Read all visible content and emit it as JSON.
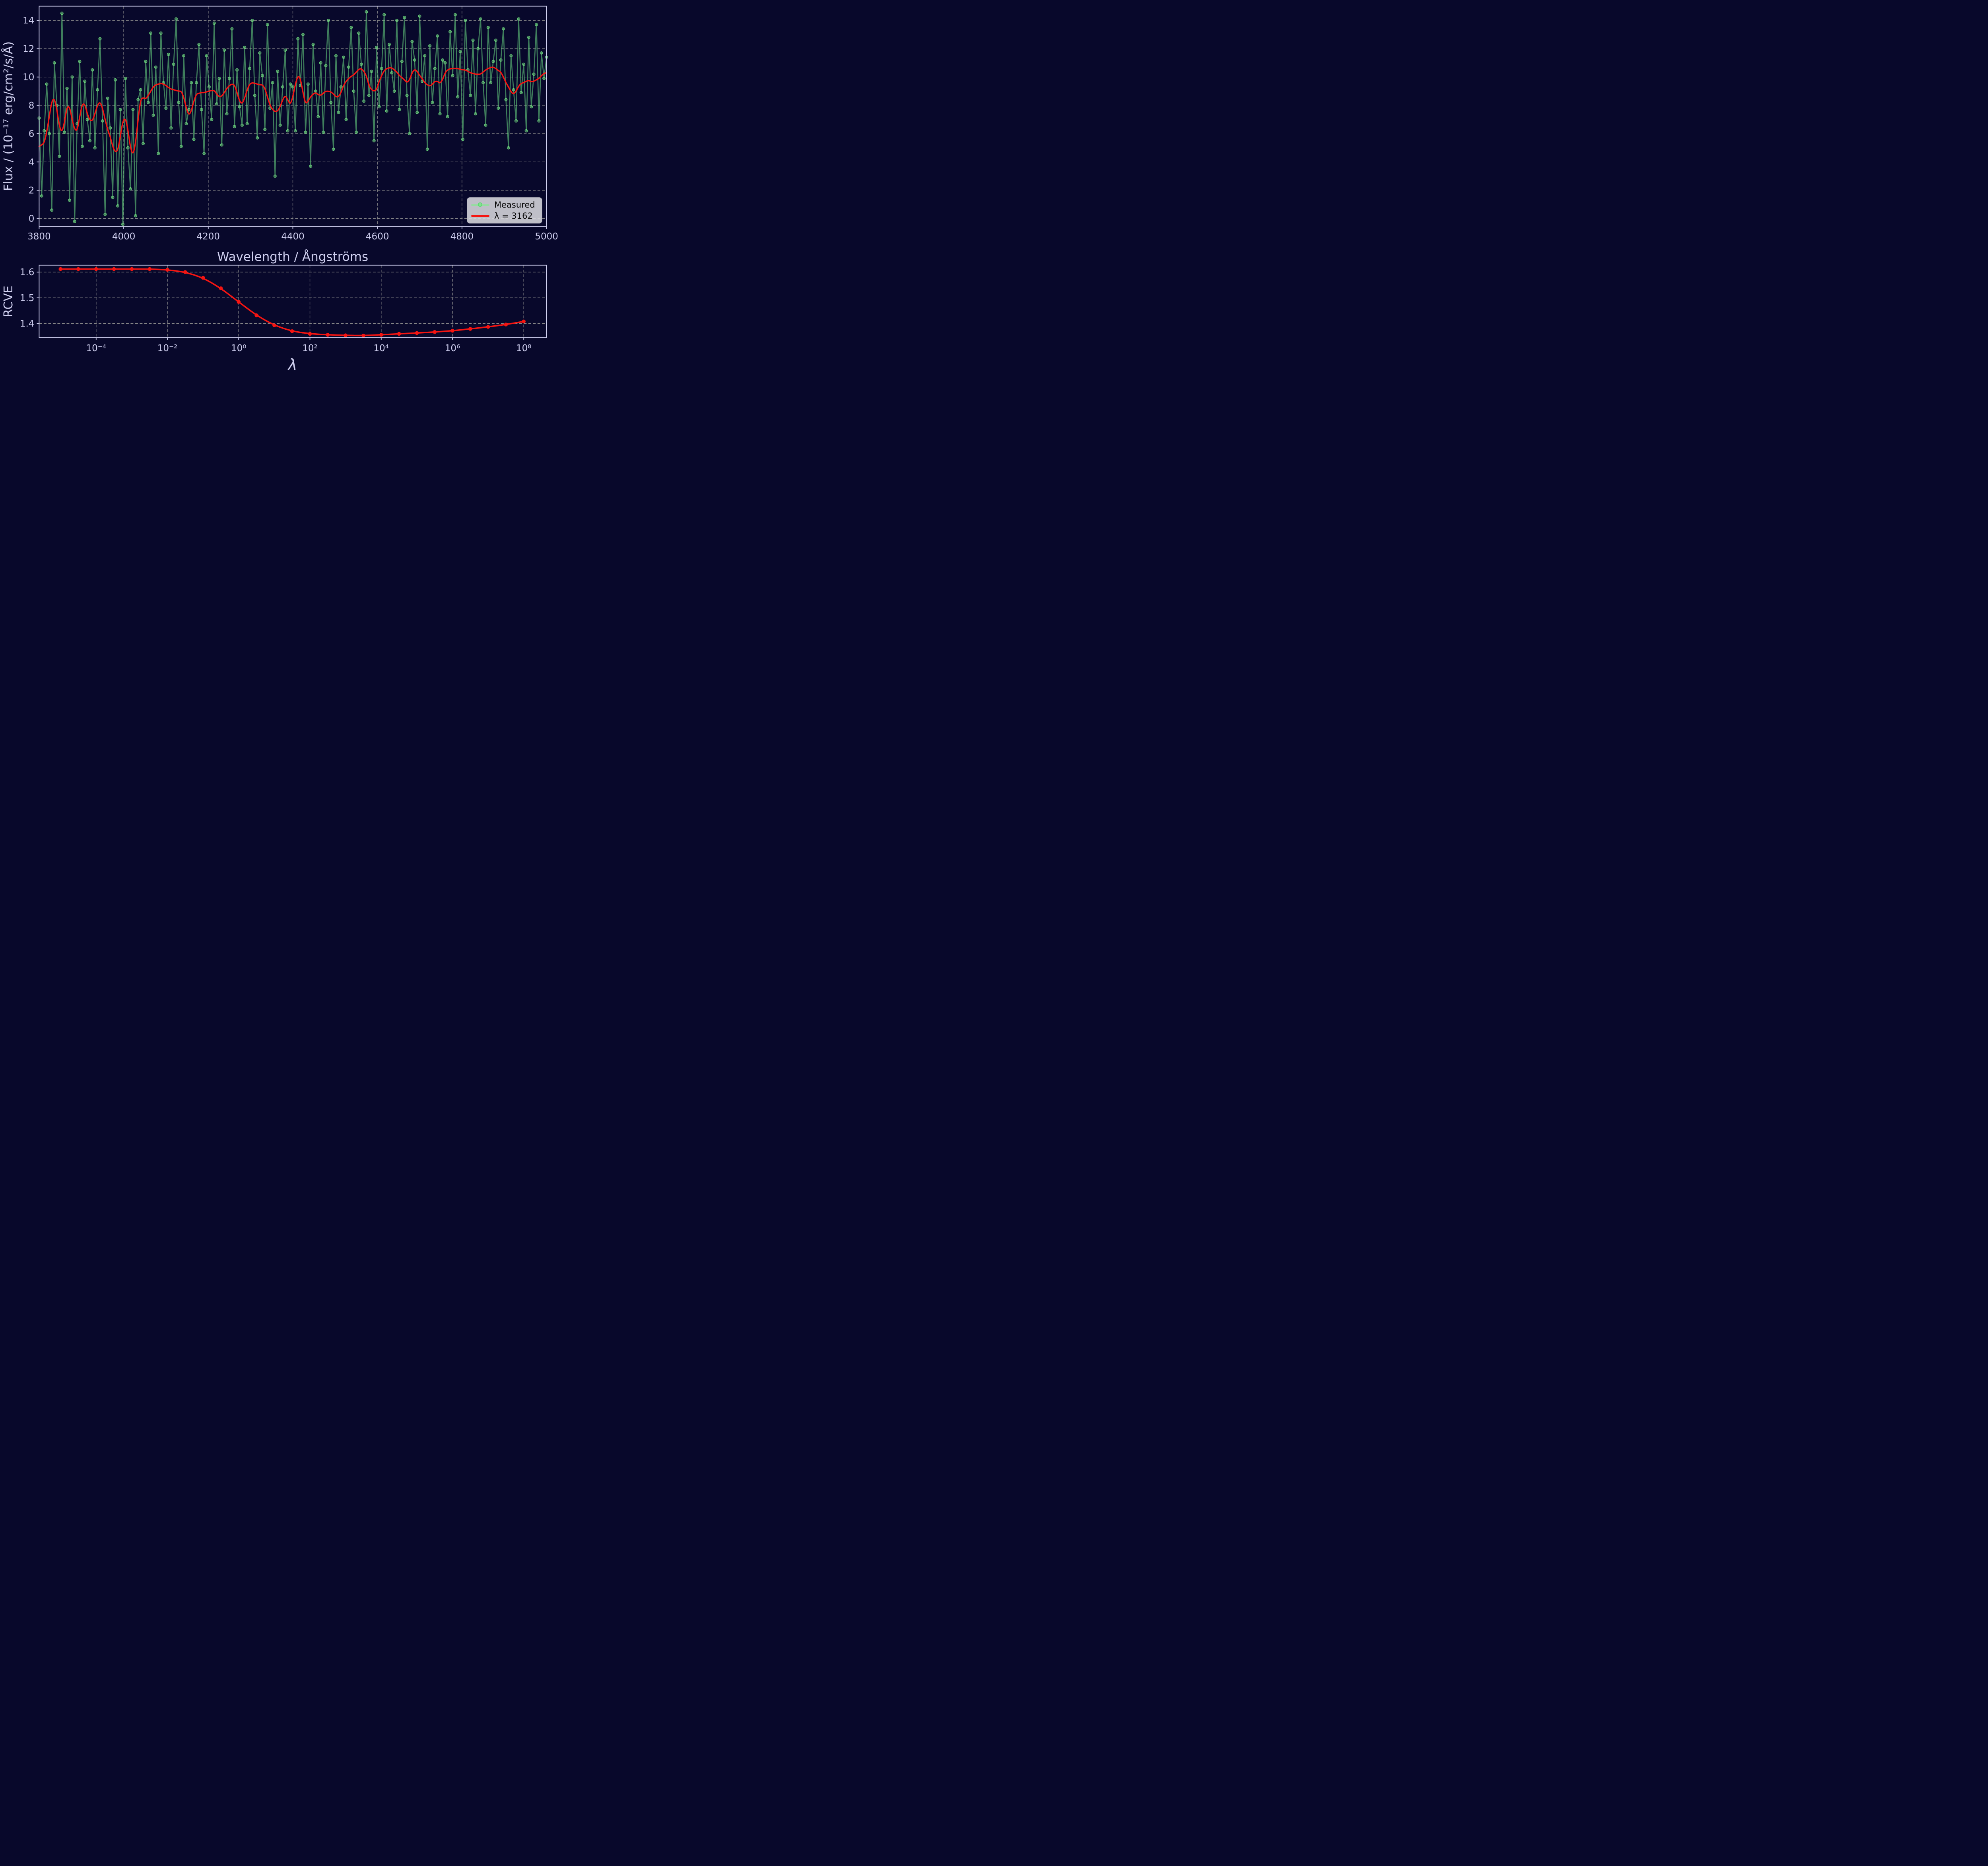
{
  "figure": {
    "background": "#08082b",
    "axes_background": "#08082b",
    "spine_color": "#cfcfef",
    "tick_label_color": "#cfcfef",
    "grid_color": "#8b8b8b",
    "measured_color": "#90ee90",
    "fit_color": "#f51512",
    "legend_background": "#d8d8de"
  },
  "legend": {
    "items": [
      {
        "label": "Measured",
        "marker": "circle-on-line",
        "color": "#90ee90"
      },
      {
        "label": "λ = 3162",
        "marker": "line",
        "color": "#f51512"
      }
    ]
  },
  "chart_data": [
    {
      "type": "line",
      "title": "",
      "xlabel": "Wavelength / Ångströms",
      "ylabel": "Flux / (10⁻¹⁷ erg/cm²/s/Å)",
      "xlim": [
        3800,
        5000
      ],
      "ylim": [
        -0.57,
        15.0
      ],
      "xticks": [
        3800,
        4000,
        4200,
        4400,
        4600,
        4800,
        5000
      ],
      "yticks": [
        0,
        2,
        4,
        6,
        8,
        10,
        12,
        14
      ],
      "grid": true,
      "legend_position": "lower right",
      "x_start": 3800,
      "x_step": 6,
      "series": [
        {
          "name": "Measured",
          "color": "#90ee90",
          "marker": "o",
          "values": [
            7.1,
            1.6,
            6.2,
            9.5,
            6.0,
            0.6,
            11.0,
            8.0,
            4.4,
            14.5,
            6.1,
            9.2,
            1.3,
            10.0,
            -0.2,
            6.7,
            11.1,
            5.1,
            9.7,
            7.0,
            5.5,
            10.5,
            5.0,
            9.1,
            12.7,
            6.9,
            0.3,
            8.5,
            6.4,
            1.5,
            9.8,
            0.9,
            7.7,
            -0.4,
            9.9,
            5.0,
            2.1,
            7.7,
            0.2,
            8.4,
            9.1,
            5.3,
            11.1,
            8.2,
            13.1,
            7.3,
            10.7,
            4.6,
            13.1,
            9.6,
            7.8,
            11.6,
            6.4,
            10.9,
            14.1,
            8.2,
            5.1,
            11.5,
            6.7,
            7.7,
            9.6,
            5.6,
            9.6,
            12.3,
            7.7,
            4.6,
            11.5,
            9.3,
            7.0,
            13.8,
            8.1,
            9.9,
            5.2,
            11.9,
            7.4,
            9.9,
            13.4,
            6.5,
            10.5,
            7.9,
            6.6,
            12.1,
            6.7,
            10.6,
            14.0,
            8.7,
            5.7,
            11.7,
            10.1,
            6.3,
            13.7,
            7.8,
            9.6,
            3.0,
            10.4,
            6.6,
            9.3,
            11.9,
            6.2,
            9.5,
            9.3,
            6.2,
            12.7,
            9.4,
            13.0,
            6.1,
            9.5,
            3.7,
            12.3,
            9.0,
            7.2,
            11.0,
            6.1,
            10.8,
            14.0,
            8.2,
            4.9,
            11.5,
            7.5,
            9.3,
            11.4,
            7.0,
            10.7,
            13.5,
            9.0,
            6.1,
            13.1,
            10.9,
            8.3,
            14.6,
            8.7,
            10.4,
            5.5,
            12.1,
            7.9,
            10.6,
            14.4,
            7.6,
            12.3,
            10.3,
            9.0,
            14.0,
            7.7,
            11.1,
            14.2,
            8.7,
            6.0,
            12.5,
            11.2,
            7.5,
            14.3,
            9.7,
            11.5,
            4.9,
            12.2,
            8.2,
            10.6,
            12.9,
            7.4,
            11.2,
            11.0,
            7.2,
            13.2,
            10.1,
            14.4,
            8.6,
            11.8,
            5.6,
            14.0,
            10.5,
            8.7,
            12.6,
            7.4,
            12.0,
            14.1,
            9.6,
            6.6,
            13.5,
            9.6,
            11.1,
            12.6,
            7.8,
            11.2,
            13.4,
            8.4,
            5.0,
            11.5,
            9.1,
            6.9,
            14.1,
            8.9,
            10.9,
            6.2,
            12.8,
            7.9,
            10.2,
            13.7,
            6.9,
            11.7,
            9.9,
            11.4
          ]
        },
        {
          "name": "λ = 3162",
          "color": "#f51512",
          "marker": "none",
          "values": [
            5.1,
            5.2,
            5.35,
            6.1,
            7.2,
            8.3,
            8.5,
            7.7,
            6.5,
            6.1,
            6.8,
            7.9,
            7.9,
            7.0,
            6.3,
            6.2,
            7.2,
            8.1,
            8.1,
            7.4,
            6.95,
            6.9,
            7.4,
            8.0,
            8.25,
            7.8,
            7.0,
            6.3,
            5.8,
            5.1,
            4.7,
            4.8,
            5.8,
            6.9,
            7.1,
            6.3,
            5.0,
            4.5,
            5.3,
            7.0,
            8.4,
            8.55,
            8.45,
            8.7,
            9.0,
            9.3,
            9.45,
            9.5,
            9.55,
            9.5,
            9.4,
            9.25,
            9.15,
            9.1,
            9.05,
            9.0,
            9.0,
            8.6,
            7.8,
            7.3,
            7.6,
            8.3,
            8.8,
            8.85,
            8.9,
            8.9,
            8.95,
            9.0,
            9.05,
            9.05,
            8.8,
            8.6,
            8.65,
            8.9,
            9.2,
            9.4,
            9.5,
            9.45,
            8.9,
            8.3,
            8.1,
            8.5,
            9.1,
            9.5,
            9.6,
            9.55,
            9.5,
            9.45,
            9.45,
            9.2,
            8.6,
            8.0,
            7.7,
            7.55,
            7.6,
            7.9,
            8.4,
            8.7,
            8.4,
            8.05,
            8.6,
            9.5,
            10.1,
            9.9,
            8.9,
            8.1,
            8.3,
            8.6,
            8.8,
            8.9,
            8.75,
            8.7,
            8.85,
            9.0,
            9.0,
            8.95,
            8.8,
            8.6,
            8.6,
            8.9,
            9.4,
            9.7,
            9.9,
            10.05,
            10.15,
            10.35,
            10.55,
            10.6,
            10.4,
            10.1,
            9.4,
            9.1,
            9.0,
            9.1,
            9.7,
            10.1,
            10.45,
            10.6,
            10.65,
            10.65,
            10.5,
            10.35,
            10.1,
            9.95,
            9.8,
            9.6,
            9.8,
            10.3,
            10.55,
            10.4,
            10.1,
            9.9,
            9.6,
            9.45,
            9.35,
            9.5,
            9.7,
            9.7,
            9.55,
            9.8,
            10.3,
            10.5,
            10.58,
            10.6,
            10.6,
            10.6,
            10.55,
            10.5,
            10.5,
            10.4,
            10.3,
            10.25,
            10.2,
            10.2,
            10.2,
            10.35,
            10.5,
            10.6,
            10.68,
            10.7,
            10.6,
            10.45,
            10.35,
            10.0,
            9.6,
            9.3,
            8.95,
            8.78,
            9.0,
            9.35,
            9.55,
            9.6,
            9.7,
            9.77,
            9.65,
            9.7,
            9.8,
            9.9,
            10.1,
            10.25,
            10.3
          ]
        }
      ]
    },
    {
      "type": "line",
      "title": "",
      "xlabel": "λ",
      "ylabel": "RCVE",
      "xscale": "log",
      "xlim_log10": [
        -5.6,
        8.64
      ],
      "ylim": [
        1.345,
        1.627
      ],
      "xtick_labels": [
        "10⁻⁴",
        "10⁻²",
        "10⁰",
        "10²",
        "10⁴",
        "10⁶",
        "10⁸"
      ],
      "xticks_log10": [
        -4,
        -2,
        0,
        2,
        4,
        6,
        8
      ],
      "yticks": [
        1.4,
        1.5,
        1.6
      ],
      "grid": true,
      "series": [
        {
          "name": "RCVE",
          "color": "#f51512",
          "marker": "o",
          "log10_x_start": -5,
          "log10_x_step": 0.5,
          "values": [
            1.612,
            1.612,
            1.612,
            1.612,
            1.612,
            1.612,
            1.609,
            1.6,
            1.578,
            1.537,
            1.484,
            1.432,
            1.393,
            1.37,
            1.36,
            1.356,
            1.354,
            1.353,
            1.356,
            1.36,
            1.363,
            1.367,
            1.372,
            1.379,
            1.387,
            1.396,
            1.408
          ]
        }
      ]
    }
  ]
}
